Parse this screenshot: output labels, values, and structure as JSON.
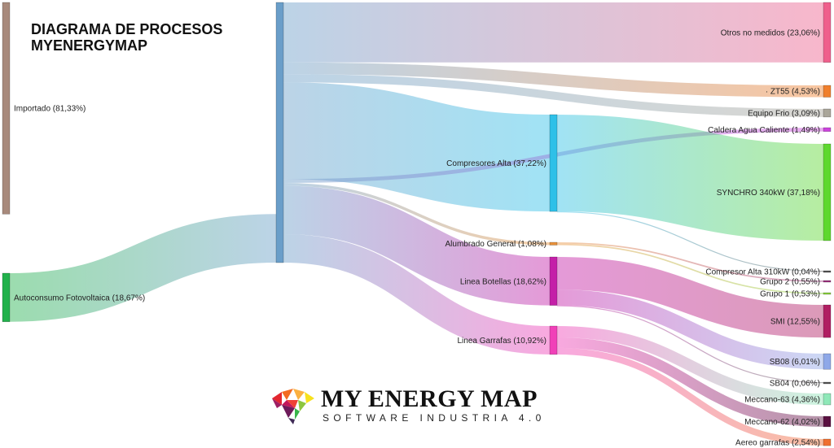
{
  "title": {
    "line1": "DIAGRAMA DE PROCESOS",
    "line2": "MYENERGYMAP"
  },
  "logo": {
    "name": "MY ENERGY MAP",
    "tagline": "SOFTWARE INDUSTRIA 4.0"
  },
  "nodes": [
    {
      "id": "importado",
      "label": "Importado (81,33%)",
      "value": 81.33,
      "color": "#a88a7c"
    },
    {
      "id": "autoconsumo",
      "label": "Autoconsumo Fotovoltaica (18,67%)",
      "value": 18.67,
      "color": "#22b14c"
    },
    {
      "id": "hub",
      "label": "",
      "value": 100,
      "color": "#6a9ec9"
    },
    {
      "id": "otros",
      "label": "Otros no medidos (23,06%)",
      "value": 23.06,
      "color": "#ef5f8c"
    },
    {
      "id": "zt55",
      "label": "· ZT55 (4,53%)",
      "value": 4.53,
      "color": "#f07f2c"
    },
    {
      "id": "equipo",
      "label": "Equipo Frio (3,09%)",
      "value": 3.09,
      "color": "#aaa69a"
    },
    {
      "id": "caldera",
      "label": "Caldera Agua Caliente (1,49%)",
      "value": 1.49,
      "color": "#cc44dd"
    },
    {
      "id": "compalta",
      "label": "Compresores Alta (37,22%)",
      "value": 37.22,
      "color": "#2ec0e8"
    },
    {
      "id": "alumbrado",
      "label": "Alumbrado General (1,08%)",
      "value": 1.08,
      "color": "#e8913a"
    },
    {
      "id": "botellas",
      "label": "Linea Botellas (18,62%)",
      "value": 18.62,
      "color": "#c41fa8"
    },
    {
      "id": "garrafas",
      "label": "Linea Garrafas (10,92%)",
      "value": 10.92,
      "color": "#f040b8"
    },
    {
      "id": "synchro",
      "label": "SYNCHRO 340kW (37,18%)",
      "value": 37.18,
      "color": "#5ed82e"
    },
    {
      "id": "comp310",
      "label": "Compresor Alta 310kW (0,04%)",
      "value": 0.04,
      "color": "#555555"
    },
    {
      "id": "grupo2",
      "label": "Grupo 2 (0,55%)",
      "value": 0.55,
      "color": "#a03080"
    },
    {
      "id": "grupo1",
      "label": "Grupo 1 (0,53%)",
      "value": 0.53,
      "color": "#8ad63a"
    },
    {
      "id": "smi",
      "label": "SMI (12,55%)",
      "value": 12.55,
      "color": "#b01e62"
    },
    {
      "id": "sb08",
      "label": "SB08 (6,01%)",
      "value": 6.01,
      "color": "#8ea8e8"
    },
    {
      "id": "sb04",
      "label": "SB04 (0,06%)",
      "value": 0.06,
      "color": "#555555"
    },
    {
      "id": "meccano63",
      "label": "Meccano-63 (4,36%)",
      "value": 4.36,
      "color": "#8ee8b8"
    },
    {
      "id": "meccano62",
      "label": "Meccano-62 (4,02%)",
      "value": 4.02,
      "color": "#5a1040"
    },
    {
      "id": "aereo",
      "label": "Aereo garrafas (2,54%)",
      "value": 2.54,
      "color": "#f07030"
    }
  ],
  "links": [
    {
      "source": "importado",
      "target": "hub",
      "value": 81.33
    },
    {
      "source": "autoconsumo",
      "target": "hub",
      "value": 18.67
    },
    {
      "source": "hub",
      "target": "otros",
      "value": 23.06
    },
    {
      "source": "hub",
      "target": "zt55",
      "value": 4.53
    },
    {
      "source": "hub",
      "target": "equipo",
      "value": 3.09
    },
    {
      "source": "hub",
      "target": "compalta",
      "value": 37.22
    },
    {
      "source": "hub",
      "target": "caldera",
      "value": 1.49
    },
    {
      "source": "hub",
      "target": "alumbrado",
      "value": 1.08
    },
    {
      "source": "hub",
      "target": "botellas",
      "value": 18.62
    },
    {
      "source": "hub",
      "target": "garrafas",
      "value": 10.92
    },
    {
      "source": "compalta",
      "target": "synchro",
      "value": 37.18
    },
    {
      "source": "compalta",
      "target": "comp310",
      "value": 0.04
    },
    {
      "source": "alumbrado",
      "target": "grupo2",
      "value": 0.55
    },
    {
      "source": "alumbrado",
      "target": "grupo1",
      "value": 0.53
    },
    {
      "source": "botellas",
      "target": "smi",
      "value": 12.55
    },
    {
      "source": "botellas",
      "target": "sb08",
      "value": 6.01
    },
    {
      "source": "botellas",
      "target": "sb04",
      "value": 0.06
    },
    {
      "source": "garrafas",
      "target": "meccano63",
      "value": 4.36
    },
    {
      "source": "garrafas",
      "target": "meccano62",
      "value": 4.02
    },
    {
      "source": "garrafas",
      "target": "aereo",
      "value": 2.54
    }
  ]
}
